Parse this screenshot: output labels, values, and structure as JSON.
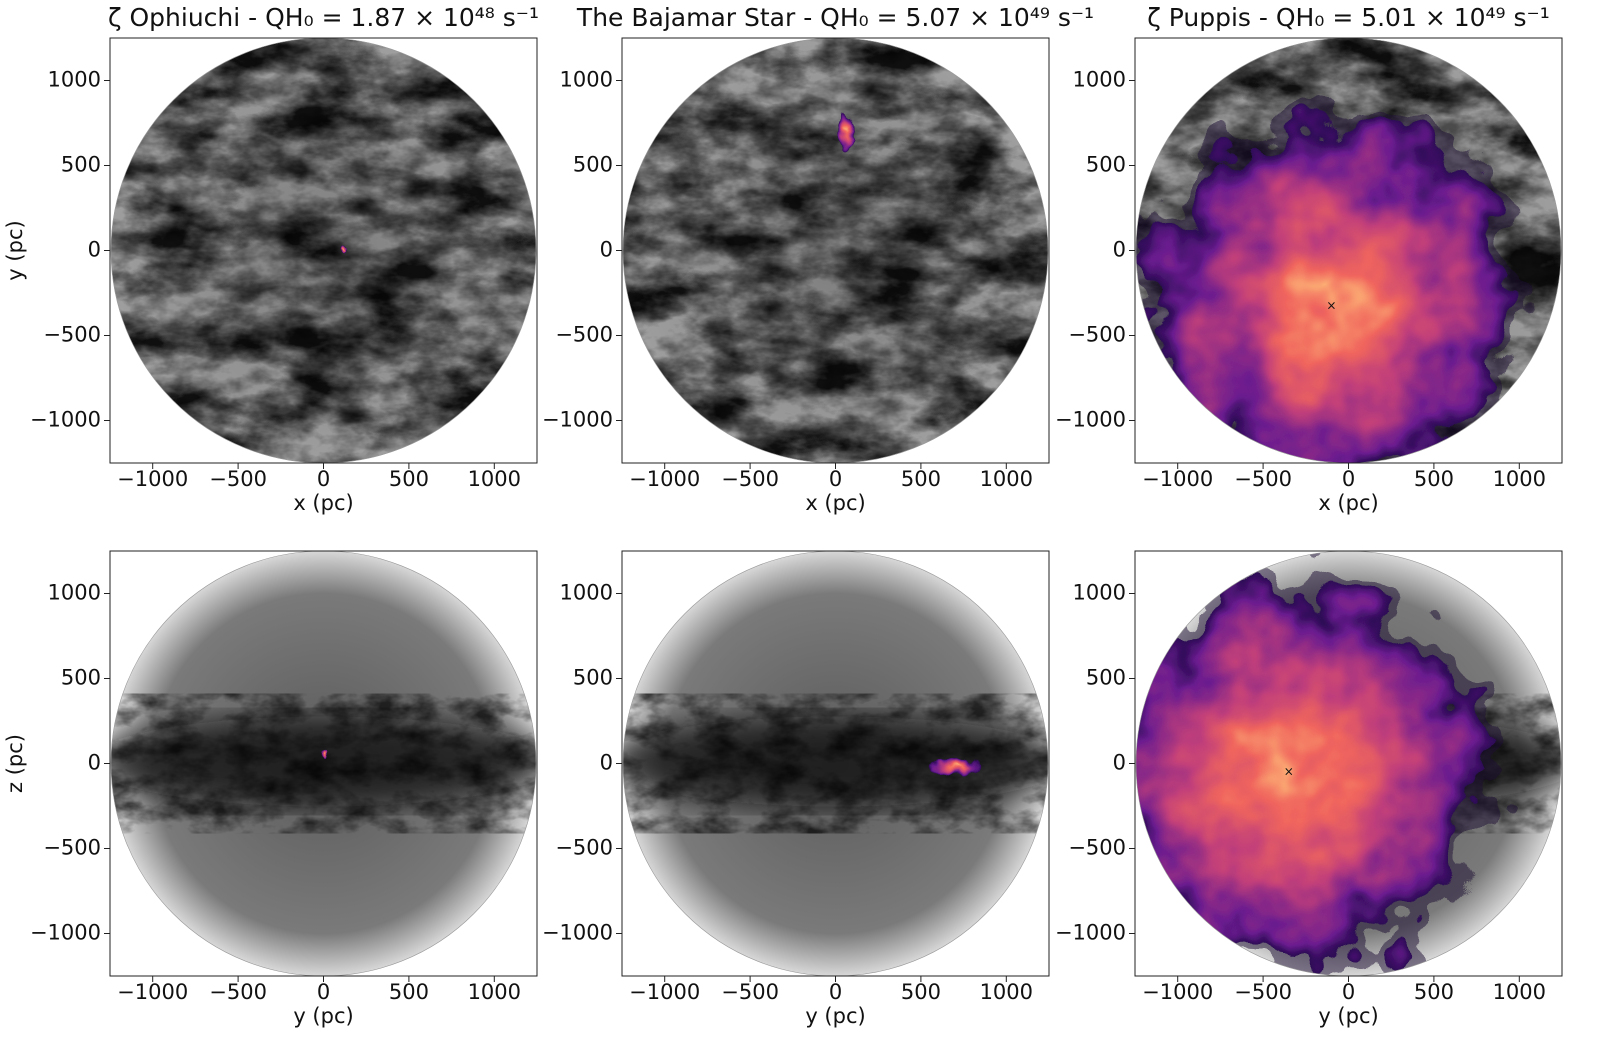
{
  "chart_data": [
    {
      "type": "image",
      "title": "ζ Ophiuchi - QH₀ = 1.87 × 10⁴⁸ s⁻¹",
      "xlabel": "x (pc)",
      "ylabel": "y (pc)",
      "xlim": [
        -1250,
        1250
      ],
      "ylim": [
        -1250,
        1250
      ],
      "xticks": [
        {
          "value": -1000,
          "label": "−1000"
        },
        {
          "value": -500,
          "label": "−500"
        },
        0,
        500,
        1000
      ],
      "yticks": [
        {
          "value": -1000,
          "label": "−1000"
        },
        {
          "value": -500,
          "label": "−500"
        },
        0,
        500,
        1000
      ]
    },
    {
      "type": "image",
      "title": "The Bajamar Star - QH₀ = 5.07 × 10⁴⁹ s⁻¹",
      "xlabel": "x (pc)",
      "xlim": [
        -1250,
        1250
      ],
      "ylim": [
        -1250,
        1250
      ],
      "xticks": [
        {
          "value": -1000,
          "label": "−1000"
        },
        {
          "value": -500,
          "label": "−500"
        },
        0,
        500,
        1000
      ],
      "yticks": [
        {
          "value": -1000,
          "label": "−1000"
        },
        {
          "value": -500,
          "label": "−500"
        },
        0,
        500,
        1000
      ]
    },
    {
      "type": "image",
      "title": "ζ Puppis - QH₀ = 5.01 × 10⁴⁹ s⁻¹",
      "xlabel": "x (pc)",
      "xlim": [
        -1250,
        1250
      ],
      "ylim": [
        -1250,
        1250
      ],
      "xticks": [
        {
          "value": -1000,
          "label": "−1000"
        },
        {
          "value": -500,
          "label": "−500"
        },
        0,
        500,
        1000
      ],
      "yticks": [
        {
          "value": -1000,
          "label": "−1000"
        },
        {
          "value": -500,
          "label": "−500"
        },
        0,
        500,
        1000
      ]
    },
    {
      "type": "image",
      "xlabel": "y (pc)",
      "ylabel": "z (pc)",
      "xlim": [
        -1250,
        1250
      ],
      "ylim": [
        -1250,
        1250
      ],
      "xticks": [
        {
          "value": -1000,
          "label": "−1000"
        },
        {
          "value": -500,
          "label": "−500"
        },
        0,
        500,
        1000
      ],
      "yticks": [
        {
          "value": -1000,
          "label": "−1000"
        },
        {
          "value": -500,
          "label": "−500"
        },
        0,
        500,
        1000
      ]
    },
    {
      "type": "image",
      "xlabel": "y (pc)",
      "xlim": [
        -1250,
        1250
      ],
      "ylim": [
        -1250,
        1250
      ],
      "xticks": [
        {
          "value": -1000,
          "label": "−1000"
        },
        {
          "value": -500,
          "label": "−500"
        },
        0,
        500,
        1000
      ],
      "yticks": [
        {
          "value": -1000,
          "label": "−1000"
        },
        {
          "value": -500,
          "label": "−500"
        },
        0,
        500,
        1000
      ]
    },
    {
      "type": "image",
      "xlabel": "y (pc)",
      "xlim": [
        -1250,
        1250
      ],
      "ylim": [
        -1250,
        1250
      ],
      "xticks": [
        {
          "value": -1000,
          "label": "−1000"
        },
        {
          "value": -500,
          "label": "−500"
        },
        0,
        500,
        1000
      ],
      "yticks": [
        {
          "value": -1000,
          "label": "−1000"
        },
        {
          "value": -500,
          "label": "−500"
        },
        0,
        500,
        1000
      ]
    }
  ]
}
